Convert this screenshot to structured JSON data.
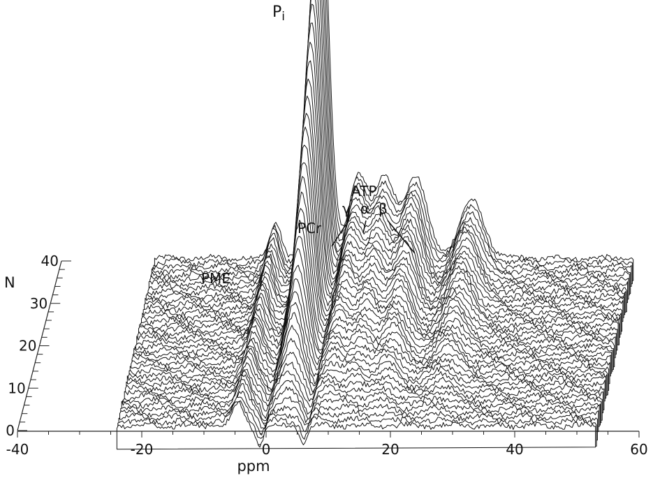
{
  "chart_data": {
    "type": "line",
    "style": "3d-waterfall",
    "title": "",
    "xlabel": "ppm",
    "ylabel": "N",
    "xlim": [
      -40,
      60
    ],
    "ylim": [
      0,
      40
    ],
    "x_ticks": [
      -40,
      -20,
      0,
      20,
      40,
      60
    ],
    "x_tick_labels": [
      "-40",
      "-20",
      "0",
      "20",
      "40",
      "60"
    ],
    "y_ticks": [
      0,
      10,
      20,
      30,
      40
    ],
    "y_tick_labels": [
      "0",
      "10",
      "20",
      "30",
      "40"
    ],
    "spectrum_range_ppm": [
      -24,
      53
    ],
    "trace_count": 41,
    "peaks": [
      {
        "name": "PME",
        "label": "PME",
        "ppm": -4.5,
        "max_height": 0.09
      },
      {
        "name": "Pi",
        "label": "P",
        "subscript": "i",
        "ppm": 2.6,
        "max_height": 1.0
      },
      {
        "name": "PCr",
        "label": "PCr",
        "ppm": 8.8,
        "max_height": 0.2
      },
      {
        "name": "ATP-gamma",
        "label": "γ",
        "ppm": 13.0,
        "max_height": 0.19
      },
      {
        "name": "ATP-alpha",
        "label": "α",
        "ppm": 18.0,
        "max_height": 0.2
      },
      {
        "name": "ATP-beta",
        "label": "β",
        "ppm": 27.0,
        "max_height": 0.14
      }
    ],
    "group_labels": [
      {
        "name": "ATP",
        "label": "ATP"
      }
    ],
    "grid": false,
    "legend": "none",
    "color": "#111111"
  }
}
